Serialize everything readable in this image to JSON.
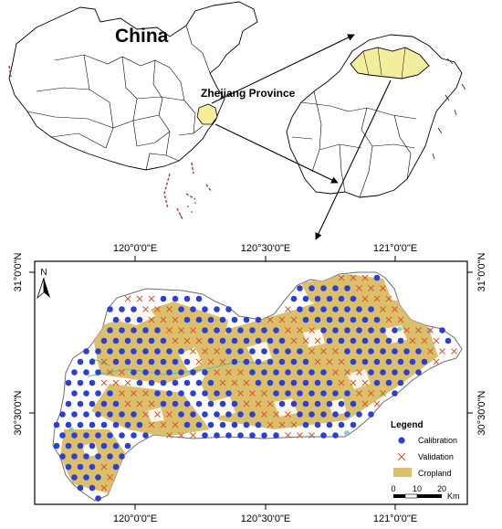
{
  "top_left_map": {
    "country_label": "China",
    "province_label": "Zhejiang Province"
  },
  "bottom_map": {
    "top_ticks": [
      "120°0'0\"E",
      "120°30'0\"E",
      "121°0'0\"E"
    ],
    "bottom_ticks": [
      "120°0'0\"E",
      "120°30'0\"E",
      "121°0'0\"E"
    ],
    "left_ticks": [
      "31°0'0\"N",
      "30°30'0\"N"
    ],
    "right_ticks": [
      "31°0'0\"N",
      "30°30'0\"N"
    ],
    "north_arrow": "N",
    "legend": {
      "title": "Legend",
      "items": [
        {
          "label": "Calibration",
          "symbol": "circle",
          "color": "#2b3fd6"
        },
        {
          "label": "Validation",
          "symbol": "cross",
          "color": "#d9532b"
        },
        {
          "label": "Cropland",
          "symbol": "fill",
          "color": "#dcbf6a"
        }
      ]
    },
    "scale_bar": {
      "ticks": [
        "0",
        "10",
        "20"
      ],
      "unit": "Km"
    }
  },
  "colors": {
    "highlight": "#f3ee9e",
    "cropland": "#dcbf6a",
    "calibration": "#2b3fd6",
    "validation": "#d9532b",
    "arrow": "#000000"
  }
}
